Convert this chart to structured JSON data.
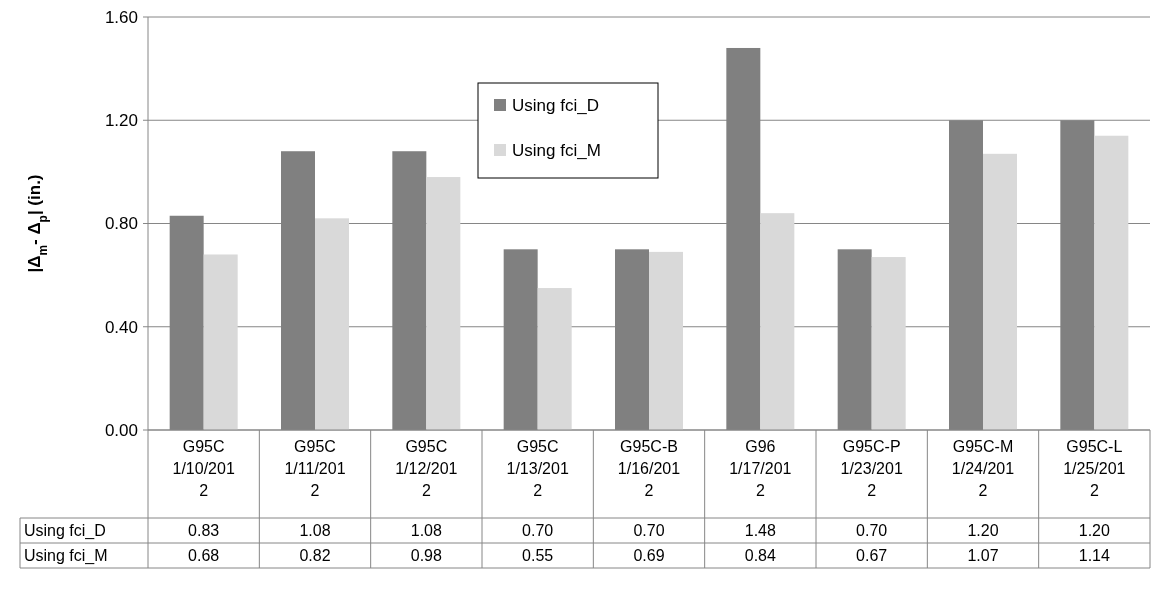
{
  "chart_data": {
    "type": "bar",
    "ylabel": "|Δ$_{m}$- Δ$_{p}$| (in.)",
    "categories": [
      "G95C 1/10/2012",
      "G95C 1/11/2012",
      "G95C 1/12/2012",
      "G95C 1/13/2012",
      "G95C-B 1/16/2012",
      "G96 1/17/2012",
      "G95C-P 1/23/2012",
      "G95C-M 1/24/2012",
      "G95C-L 1/25/2012"
    ],
    "series": [
      {
        "name": "Using fci_D",
        "color": "#808080",
        "values": [
          0.83,
          1.08,
          1.08,
          0.7,
          0.7,
          1.48,
          0.7,
          1.2,
          1.2
        ],
        "value_labels": [
          "0.83",
          "1.08",
          "1.08",
          "0.70",
          "0.70",
          "1.48",
          "0.70",
          "1.20",
          "1.20"
        ]
      },
      {
        "name": "Using fci_M",
        "color": "#d9d9d9",
        "values": [
          0.68,
          0.82,
          0.98,
          0.55,
          0.69,
          0.84,
          0.67,
          1.07,
          1.14
        ],
        "value_labels": [
          "0.68",
          "0.82",
          "0.98",
          "0.55",
          "0.69",
          "0.84",
          "0.67",
          "1.07",
          "1.14"
        ]
      }
    ],
    "ylim": [
      0,
      1.6
    ],
    "yticks": [
      {
        "value": 0,
        "label": "0.00"
      },
      {
        "value": 0.4,
        "label": "0.40"
      },
      {
        "value": 0.8,
        "label": "0.80"
      },
      {
        "value": 1.2,
        "label": "1.20"
      },
      {
        "value": 1.6,
        "label": "1.60"
      }
    ],
    "grid": "y",
    "legend": "top"
  }
}
